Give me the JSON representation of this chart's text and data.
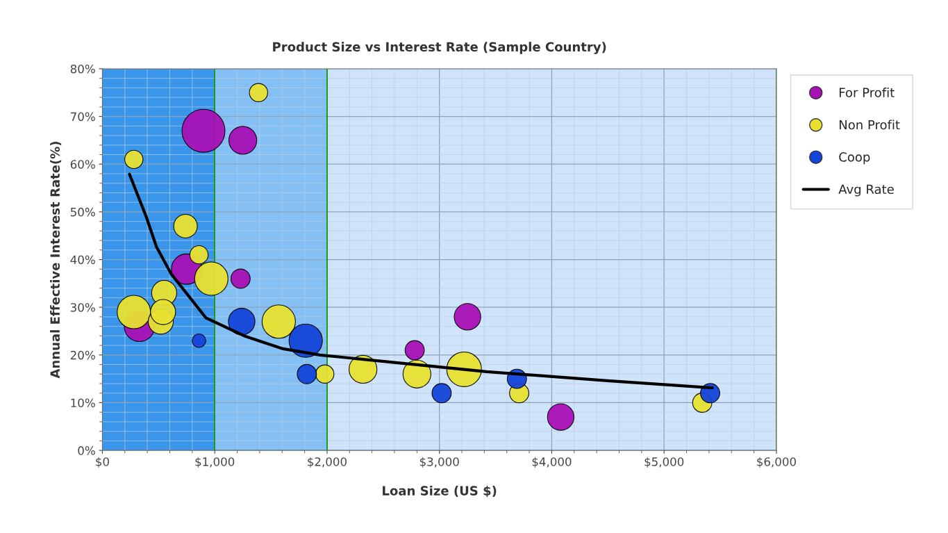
{
  "chart_data": {
    "type": "bubble",
    "title": "Product Size vs Interest Rate (Sample Country)",
    "xlabel": "Loan Size (US $)",
    "ylabel": "Annual Effective Interest Rate(%)",
    "series": [
      {
        "name": "For Profit",
        "color": "#a810b5",
        "x": [
          900,
          1250,
          750,
          1230,
          330,
          3250,
          2780,
          4080
        ],
        "values": [
          67,
          65,
          38,
          36,
          26,
          28,
          21,
          7
        ],
        "sizes": [
          1,
          0.42,
          0.5,
          0.2,
          0.5,
          0.38,
          0.2,
          0.38
        ]
      },
      {
        "name": "Non Profit",
        "color": "#e8e030",
        "x": [
          1390,
          280,
          740,
          860,
          970,
          550,
          280,
          520,
          540,
          1570,
          1980,
          2320,
          2800,
          3220,
          3710,
          5340
        ],
        "values": [
          75,
          61,
          47,
          41,
          36,
          33,
          29,
          27,
          29,
          27,
          16,
          17,
          16,
          17,
          12,
          10
        ],
        "sizes": [
          0.18,
          0.18,
          0.3,
          0.18,
          0.6,
          0.34,
          0.6,
          0.34,
          0.34,
          0.6,
          0.18,
          0.42,
          0.42,
          0.65,
          0.2,
          0.2
        ]
      },
      {
        "name": "Coop",
        "color": "#1345d8",
        "x": [
          860,
          1240,
          1810,
          1820,
          3020,
          3690,
          5410
        ],
        "values": [
          23,
          27,
          23,
          16,
          12,
          15,
          12
        ],
        "sizes": [
          0.1,
          0.38,
          0.6,
          0.2,
          0.2,
          0.2,
          0.2
        ]
      },
      {
        "name": "Avg Rate",
        "type": "line",
        "color": "#000000",
        "marker": "none",
        "x": [
          241,
          390,
          481,
          612,
          921,
          1010,
          1274,
          1608,
          1936,
          3420,
          4496,
          5430
        ],
        "values": [
          57.9,
          49,
          42.7,
          37,
          27.8,
          26.8,
          23.9,
          21.3,
          20.0,
          16.5,
          14.6,
          13.1
        ]
      }
    ],
    "bands": [
      {
        "axis": "x",
        "from": 0,
        "to": 1000,
        "color": "#3a96ea"
      },
      {
        "axis": "x",
        "from": 1000,
        "to": 2000,
        "color": "#85c0f5"
      },
      {
        "axis": "x",
        "from": 2000,
        "to": 6000,
        "color": "#cfe4fb"
      }
    ],
    "xlim": [
      0,
      6000
    ],
    "xticks": [
      {
        "value": 0,
        "label": "$0"
      },
      {
        "value": 1000,
        "label": "$1,000"
      },
      {
        "value": 2000,
        "label": "$2,000"
      },
      {
        "value": 3000,
        "label": "$3,000"
      },
      {
        "value": 4000,
        "label": "$4,000"
      },
      {
        "value": 5000,
        "label": "$5,000"
      },
      {
        "value": 6000,
        "label": "$6,000"
      },
      {
        "value": 200,
        "label": null
      },
      {
        "value": 400,
        "label": null
      },
      {
        "value": 600,
        "label": null
      },
      {
        "value": 800,
        "label": null
      },
      {
        "value": 1200,
        "label": null
      },
      {
        "value": 1400,
        "label": null
      },
      {
        "value": 1600,
        "label": null
      },
      {
        "value": 1800,
        "label": null
      },
      {
        "value": 2200,
        "label": null
      },
      {
        "value": 2400,
        "label": null
      },
      {
        "value": 2600,
        "label": null
      },
      {
        "value": 2800,
        "label": null
      },
      {
        "value": 3200,
        "label": null
      },
      {
        "value": 3400,
        "label": null
      },
      {
        "value": 3600,
        "label": null
      },
      {
        "value": 3800,
        "label": null
      },
      {
        "value": 4200,
        "label": null
      },
      {
        "value": 4400,
        "label": null
      },
      {
        "value": 4600,
        "label": null
      },
      {
        "value": 4800,
        "label": null
      },
      {
        "value": 5200,
        "label": null
      },
      {
        "value": 5400,
        "label": null
      },
      {
        "value": 5600,
        "label": null
      },
      {
        "value": 5800,
        "label": null
      }
    ],
    "ylim": [
      0,
      80
    ],
    "yticks": [
      {
        "value": 0,
        "label": "0%"
      },
      {
        "value": 10,
        "label": "10%"
      },
      {
        "value": 20,
        "label": "20%"
      },
      {
        "value": 30,
        "label": "30%"
      },
      {
        "value": 40,
        "label": "40%"
      },
      {
        "value": 50,
        "label": "50%"
      },
      {
        "value": 60,
        "label": "60%"
      },
      {
        "value": 70,
        "label": "70%"
      },
      {
        "value": 80,
        "label": "80%"
      },
      {
        "value": 2,
        "label": null
      },
      {
        "value": 4,
        "label": null
      },
      {
        "value": 6,
        "label": null
      },
      {
        "value": 8,
        "label": null
      },
      {
        "value": 12,
        "label": null
      },
      {
        "value": 14,
        "label": null
      },
      {
        "value": 16,
        "label": null
      },
      {
        "value": 18,
        "label": null
      },
      {
        "value": 22,
        "label": null
      },
      {
        "value": 24,
        "label": null
      },
      {
        "value": 26,
        "label": null
      },
      {
        "value": 28,
        "label": null
      },
      {
        "value": 32,
        "label": null
      },
      {
        "value": 34,
        "label": null
      },
      {
        "value": 36,
        "label": null
      },
      {
        "value": 38,
        "label": null
      },
      {
        "value": 42,
        "label": null
      },
      {
        "value": 44,
        "label": null
      },
      {
        "value": 46,
        "label": null
      },
      {
        "value": 48,
        "label": null
      },
      {
        "value": 52,
        "label": null
      },
      {
        "value": 54,
        "label": null
      },
      {
        "value": 56,
        "label": null
      },
      {
        "value": 58,
        "label": null
      },
      {
        "value": 62,
        "label": null
      },
      {
        "value": 64,
        "label": null
      },
      {
        "value": 66,
        "label": null
      },
      {
        "value": 68,
        "label": null
      },
      {
        "value": 72,
        "label": null
      },
      {
        "value": 74,
        "label": null
      },
      {
        "value": 76,
        "label": null
      },
      {
        "value": 78,
        "label": null
      }
    ],
    "grid": true,
    "legend": "right",
    "marker": "circle"
  }
}
